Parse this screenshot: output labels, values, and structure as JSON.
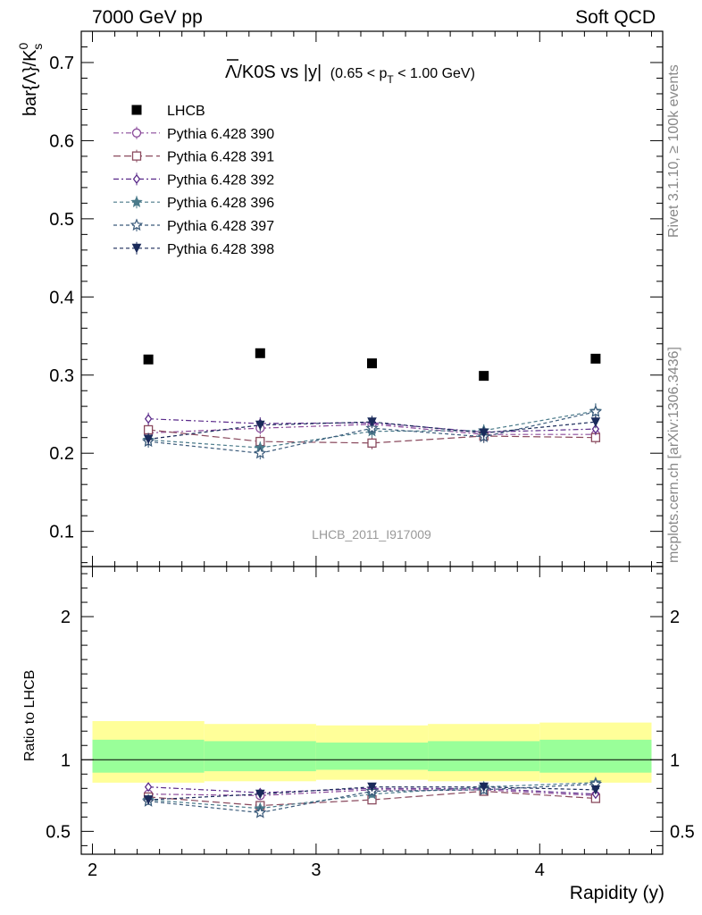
{
  "header": {
    "left": "7000 GeV pp",
    "right": "Soft QCD"
  },
  "side_labels": {
    "rivet": "Rivet 3.1.10, ≥ 100k events",
    "mcplots": "mcplots.cern.ch [arXiv:1306.3436]"
  },
  "plot_title": {
    "main": "Λ/K0S vs |y|",
    "overline_char": "Λ",
    "rest": "/K0S vs |y|",
    "cut_prefix": "(0.65 < p",
    "cut_sub": "T",
    "cut_suffix": " < 1.00 GeV)"
  },
  "analysis_label": "LHCB_2011_I917009",
  "colors": {
    "data": "#000000",
    "band_inner": "#99ff99",
    "band_outer": "#ffff99"
  },
  "chart_data": [
    {
      "type": "scatter",
      "panel": "main",
      "ylabel": "bar{Λ}/K",
      "ylabel_sup": "0",
      "ylabel_sub": "s",
      "ylim": [
        0.055,
        0.74
      ],
      "yticks": [
        0.1,
        0.2,
        0.3,
        0.4,
        0.5,
        0.6,
        0.7
      ],
      "ytick_labels": [
        "0.1",
        "0.2",
        "0.3",
        "0.4",
        "0.5",
        "0.6",
        "0.7"
      ],
      "x": [
        2.25,
        2.75,
        3.25,
        3.75,
        4.25
      ],
      "data": {
        "name": "LHCB",
        "values": [
          0.32,
          0.328,
          0.315,
          0.299,
          0.321
        ]
      },
      "series": [
        {
          "name": "Pythia 6.428 390",
          "color": "#8a4a9a",
          "marker": "circle",
          "dash": "6,3,2,3",
          "values": [
            0.226,
            0.232,
            0.237,
            0.224,
            0.224
          ],
          "err": [
            0.008,
            0.008,
            0.008,
            0.008,
            0.008
          ]
        },
        {
          "name": "Pythia 6.428 391",
          "color": "#8a4a5e",
          "marker": "square",
          "dash": "8,4",
          "values": [
            0.23,
            0.215,
            0.213,
            0.222,
            0.22
          ],
          "err": [
            0.008,
            0.008,
            0.008,
            0.008,
            0.008
          ]
        },
        {
          "name": "Pythia 6.428 392",
          "color": "#5a2a8a",
          "marker": "diamond",
          "dash": "6,3,2,3",
          "values": [
            0.244,
            0.238,
            0.239,
            0.227,
            0.231
          ],
          "err": [
            0.008,
            0.008,
            0.008,
            0.008,
            0.008
          ]
        },
        {
          "name": "Pythia 6.428 396",
          "color": "#4a7a8a",
          "marker": "star-filled",
          "dash": "4,3",
          "values": [
            0.217,
            0.207,
            0.228,
            0.229,
            0.254
          ],
          "err": [
            0.008,
            0.008,
            0.008,
            0.008,
            0.01
          ]
        },
        {
          "name": "Pythia 6.428 397",
          "color": "#3a5a7a",
          "marker": "star-open",
          "dash": "4,3",
          "values": [
            0.215,
            0.2,
            0.232,
            0.221,
            0.253
          ],
          "err": [
            0.008,
            0.008,
            0.008,
            0.008,
            0.01
          ]
        },
        {
          "name": "Pythia 6.428 398",
          "color": "#1a2a5a",
          "marker": "triangle-down",
          "dash": "4,3",
          "values": [
            0.218,
            0.236,
            0.24,
            0.226,
            0.24
          ],
          "err": [
            0.008,
            0.008,
            0.008,
            0.008,
            0.008
          ]
        }
      ]
    },
    {
      "type": "scatter",
      "panel": "ratio",
      "ylabel": "Ratio to LHCB",
      "ylim": [
        0.34,
        2.35
      ],
      "yticks": [
        0.5,
        1,
        2
      ],
      "ytick_labels": [
        "0.5",
        "1",
        "2"
      ],
      "xlabel": "Rapidity (y)",
      "xlim": [
        1.95,
        4.55
      ],
      "xticks": [
        2,
        3,
        4
      ],
      "xtick_labels": [
        "2",
        "3",
        "4"
      ],
      "band_bins": [
        [
          2.0,
          2.5
        ],
        [
          2.5,
          3.0
        ],
        [
          3.0,
          3.5
        ],
        [
          3.5,
          4.0
        ],
        [
          4.0,
          4.5
        ]
      ],
      "band_inner": [
        [
          0.91,
          1.14
        ],
        [
          0.92,
          1.13
        ],
        [
          0.93,
          1.12
        ],
        [
          0.92,
          1.13
        ],
        [
          0.91,
          1.14
        ]
      ],
      "band_outer": [
        [
          0.84,
          1.27
        ],
        [
          0.85,
          1.25
        ],
        [
          0.86,
          1.24
        ],
        [
          0.85,
          1.25
        ],
        [
          0.84,
          1.26
        ]
      ],
      "series": [
        {
          "name": "Pythia 6.428 390",
          "values": [
            0.76,
            0.75,
            0.79,
            0.79,
            0.75
          ]
        },
        {
          "name": "Pythia 6.428 391",
          "values": [
            0.74,
            0.68,
            0.72,
            0.78,
            0.73
          ]
        },
        {
          "name": "Pythia 6.428 392",
          "values": [
            0.81,
            0.77,
            0.8,
            0.8,
            0.76
          ]
        },
        {
          "name": "Pythia 6.428 396",
          "values": [
            0.72,
            0.66,
            0.76,
            0.81,
            0.84
          ]
        },
        {
          "name": "Pythia 6.428 397",
          "values": [
            0.71,
            0.63,
            0.78,
            0.79,
            0.83
          ]
        },
        {
          "name": "Pythia 6.428 398",
          "values": [
            0.72,
            0.76,
            0.81,
            0.81,
            0.79
          ]
        }
      ]
    }
  ]
}
